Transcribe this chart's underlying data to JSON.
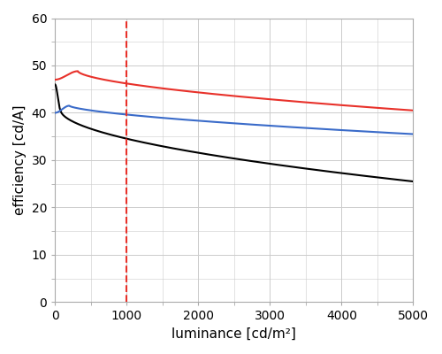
{
  "title": "",
  "xlabel": "luminance [cd/m²]",
  "ylabel": "efficiency [cd/A]",
  "xlim": [
    0,
    5000
  ],
  "ylim": [
    0,
    60
  ],
  "xticks": [
    0,
    1000,
    2000,
    3000,
    4000,
    5000
  ],
  "yticks": [
    0,
    10,
    20,
    30,
    40,
    50,
    60
  ],
  "vline_x": 1000,
  "vline_color": "#e8312a",
  "vline_style": "--",
  "grid_color": "#cccccc",
  "background_color": "#ffffff",
  "curves": {
    "black": {
      "color": "#000000",
      "x0": 0,
      "y0": 46.0,
      "peak_x": 80,
      "peak_y": 40.5,
      "end_y": 25.5
    },
    "red": {
      "color": "#e8312a",
      "x0": 0,
      "y0": 47.0,
      "peak_x": 320,
      "peak_y": 48.8,
      "end_y": 40.5
    },
    "blue": {
      "color": "#3a6bc9",
      "x0": 0,
      "y0": 40.0,
      "peak_x": 200,
      "peak_y": 41.5,
      "end_y": 35.5
    }
  }
}
